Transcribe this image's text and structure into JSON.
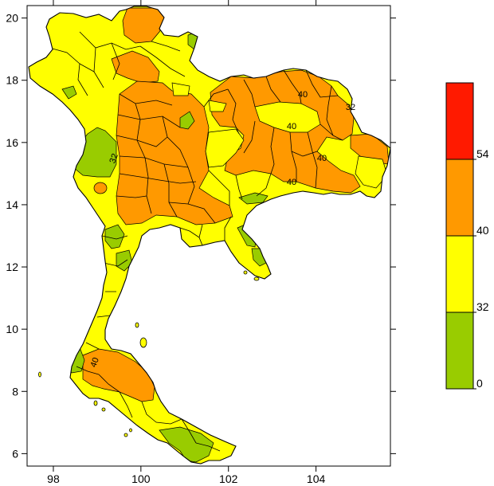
{
  "chart_data": {
    "type": "heatmap",
    "title": "",
    "xlabel": "",
    "ylabel": "",
    "xlim": [
      97.4,
      105.7
    ],
    "ylim": [
      5.6,
      20.4
    ],
    "x_ticks": [
      98,
      100,
      102,
      104
    ],
    "y_ticks": [
      6,
      8,
      10,
      12,
      14,
      16,
      18,
      20
    ],
    "x_tick_labels": [
      "98",
      "100",
      "102",
      "104"
    ],
    "y_tick_labels": [
      "6",
      "8",
      "10",
      "12",
      "14",
      "16",
      "18",
      "20"
    ],
    "contour_labels": [
      "32",
      "40",
      "40",
      "40",
      "40",
      "32",
      "40"
    ],
    "legend": {
      "placement": "right",
      "bins": [
        {
          "from": 0,
          "to": 32,
          "color": "#99cc00"
        },
        {
          "from": 32,
          "to": 40,
          "color": "#ffff00"
        },
        {
          "from": 40,
          "to": 54,
          "color": "#ff9900"
        },
        {
          "from": 54,
          "to": null,
          "color": "#ff1a00"
        }
      ],
      "labels": [
        "0",
        "32",
        "40",
        "54"
      ]
    },
    "grid": false
  }
}
